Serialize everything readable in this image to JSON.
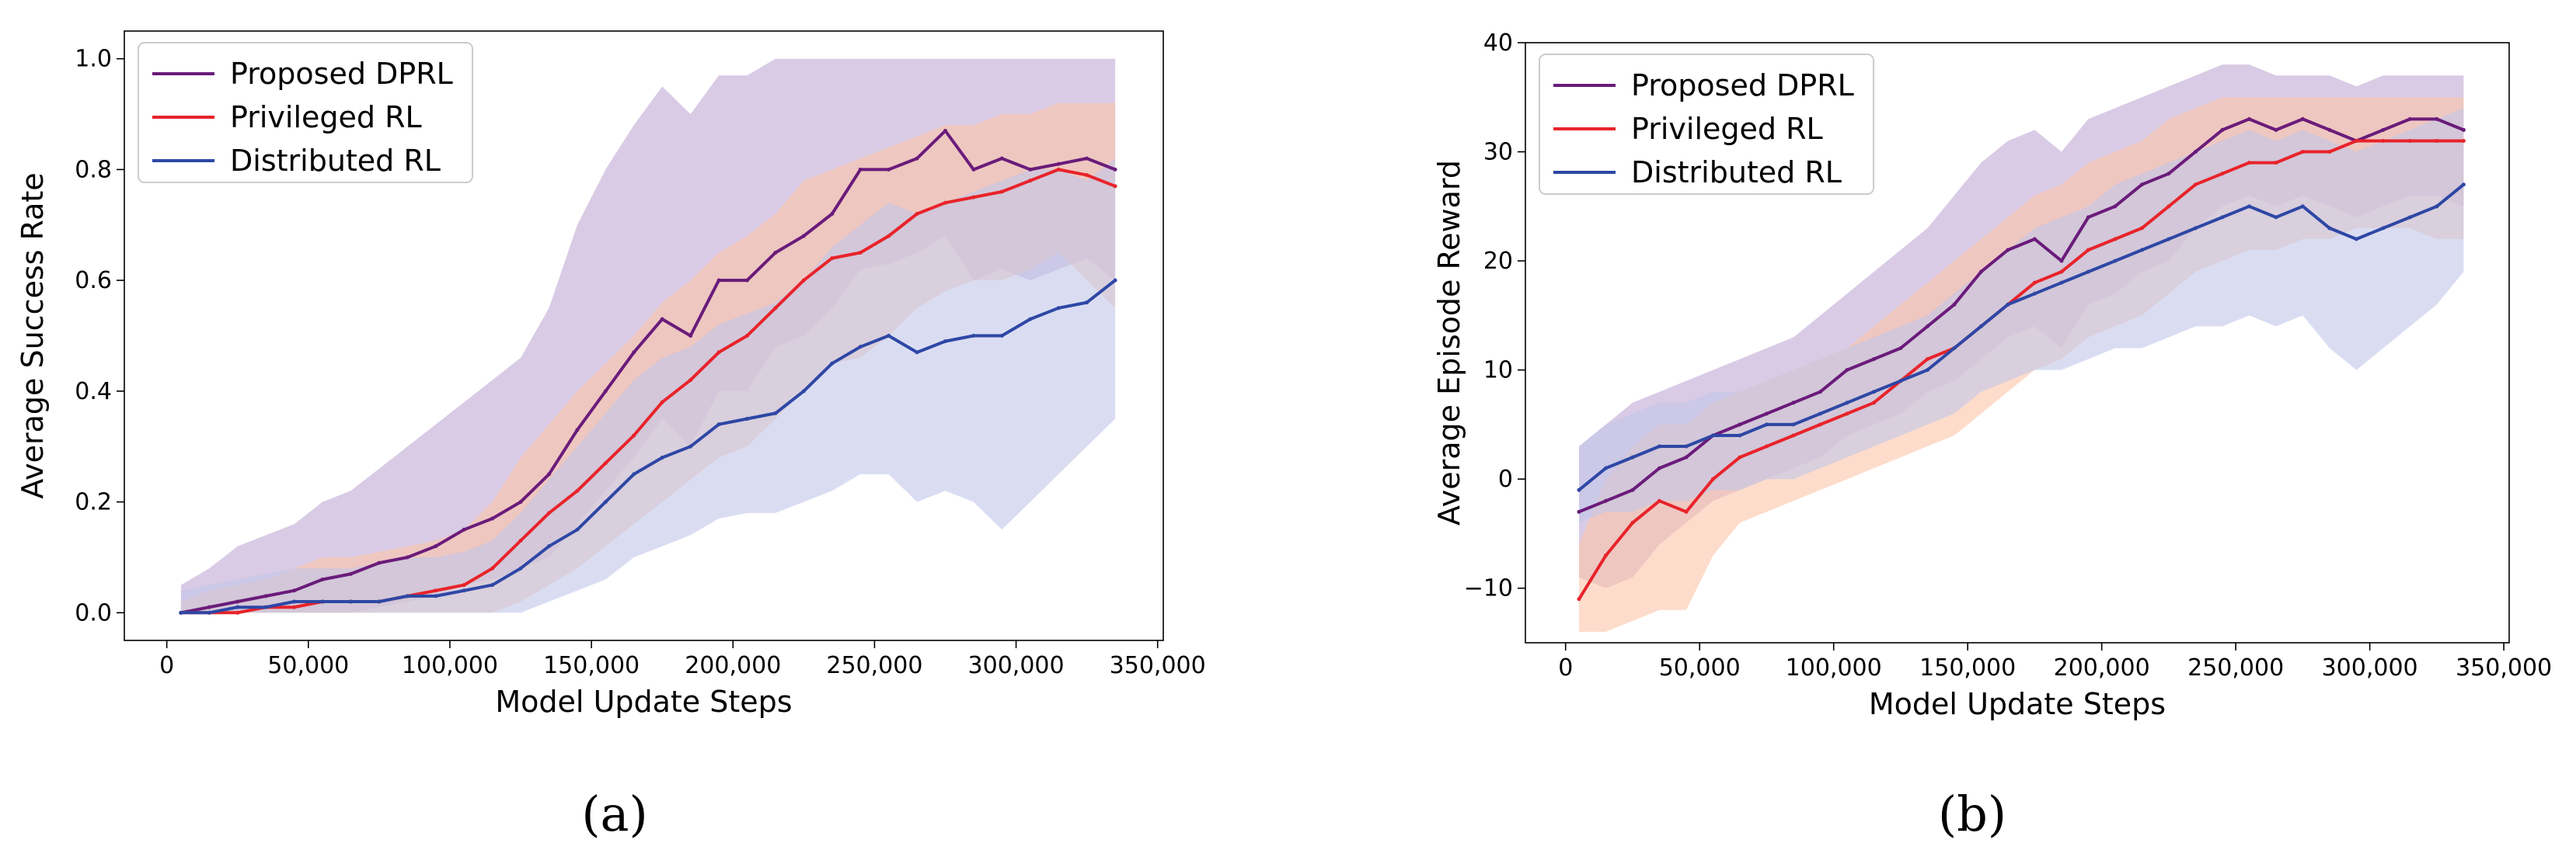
{
  "chart_data": [
    {
      "type": "line",
      "panel_caption": "(a)",
      "xlabel": "Model Update Steps",
      "ylabel": "Average Success Rate",
      "xlim": [
        -15000,
        352000
      ],
      "ylim": [
        -0.05,
        1.05
      ],
      "xticks": [
        0,
        50000,
        100000,
        150000,
        200000,
        250000,
        300000,
        350000
      ],
      "xtick_labels": [
        "0",
        "50,000",
        "100,000",
        "150,000",
        "200,000",
        "250,000",
        "300,000",
        "350,000"
      ],
      "yticks": [
        0.0,
        0.2,
        0.4,
        0.6,
        0.8,
        1.0
      ],
      "ytick_labels": [
        "0.0",
        "0.2",
        "0.4",
        "0.6",
        "0.8",
        "1.0"
      ],
      "legend_position": "top-left",
      "x": [
        5000,
        15000,
        25000,
        35000,
        45000,
        55000,
        65000,
        75000,
        85000,
        95000,
        105000,
        115000,
        125000,
        135000,
        145000,
        155000,
        165000,
        175000,
        185000,
        195000,
        205000,
        215000,
        225000,
        235000,
        245000,
        255000,
        265000,
        275000,
        285000,
        295000,
        305000,
        315000,
        325000,
        335000
      ],
      "series": [
        {
          "name": "Proposed DPRL",
          "color": "#6a1b7a",
          "band_color": "#bfa9d4",
          "values": [
            0.0,
            0.01,
            0.02,
            0.03,
            0.04,
            0.06,
            0.07,
            0.09,
            0.1,
            0.12,
            0.15,
            0.17,
            0.2,
            0.25,
            0.33,
            0.4,
            0.47,
            0.53,
            0.5,
            0.6,
            0.6,
            0.65,
            0.68,
            0.72,
            0.8,
            0.8,
            0.82,
            0.87,
            0.8,
            0.82,
            0.8,
            0.81,
            0.82,
            0.8
          ],
          "lower": [
            0.0,
            0.0,
            0.0,
            0.0,
            0.0,
            0.0,
            0.0,
            0.01,
            0.02,
            0.03,
            0.05,
            0.06,
            0.08,
            0.1,
            0.16,
            0.22,
            0.28,
            0.35,
            0.3,
            0.4,
            0.4,
            0.48,
            0.5,
            0.55,
            0.62,
            0.63,
            0.65,
            0.68,
            0.6,
            0.62,
            0.6,
            0.62,
            0.64,
            0.6
          ],
          "upper": [
            0.05,
            0.08,
            0.12,
            0.14,
            0.16,
            0.2,
            0.22,
            0.26,
            0.3,
            0.34,
            0.38,
            0.42,
            0.46,
            0.55,
            0.7,
            0.8,
            0.88,
            0.95,
            0.9,
            0.97,
            0.97,
            1.0,
            1.0,
            1.0,
            1.0,
            1.0,
            1.0,
            1.0,
            1.0,
            1.0,
            1.0,
            1.0,
            1.0,
            1.0
          ]
        },
        {
          "name": "Privileged RL",
          "color": "#e8232a",
          "band_color": "#fbc4a9",
          "values": [
            0.0,
            0.0,
            0.0,
            0.01,
            0.01,
            0.02,
            0.02,
            0.02,
            0.03,
            0.04,
            0.05,
            0.08,
            0.13,
            0.18,
            0.22,
            0.27,
            0.32,
            0.38,
            0.42,
            0.47,
            0.5,
            0.55,
            0.6,
            0.64,
            0.65,
            0.68,
            0.72,
            0.74,
            0.75,
            0.76,
            0.78,
            0.8,
            0.79,
            0.77
          ],
          "lower": [
            0.0,
            0.0,
            0.0,
            0.0,
            0.0,
            0.0,
            0.0,
            0.0,
            0.0,
            0.0,
            0.0,
            0.0,
            0.02,
            0.05,
            0.08,
            0.12,
            0.16,
            0.2,
            0.24,
            0.28,
            0.3,
            0.35,
            0.4,
            0.45,
            0.46,
            0.5,
            0.55,
            0.58,
            0.6,
            0.6,
            0.62,
            0.65,
            0.6,
            0.55
          ],
          "upper": [
            0.02,
            0.04,
            0.05,
            0.06,
            0.08,
            0.1,
            0.1,
            0.11,
            0.12,
            0.13,
            0.15,
            0.2,
            0.28,
            0.34,
            0.4,
            0.45,
            0.5,
            0.56,
            0.6,
            0.65,
            0.68,
            0.72,
            0.78,
            0.8,
            0.82,
            0.84,
            0.86,
            0.88,
            0.88,
            0.9,
            0.9,
            0.92,
            0.92,
            0.92
          ]
        },
        {
          "name": "Distributed RL",
          "color": "#2e47a5",
          "band_color": "#c2c6ea",
          "values": [
            0.0,
            0.0,
            0.01,
            0.01,
            0.02,
            0.02,
            0.02,
            0.02,
            0.03,
            0.03,
            0.04,
            0.05,
            0.08,
            0.12,
            0.15,
            0.2,
            0.25,
            0.28,
            0.3,
            0.34,
            0.35,
            0.36,
            0.4,
            0.45,
            0.48,
            0.5,
            0.47,
            0.49,
            0.5,
            0.5,
            0.53,
            0.55,
            0.56,
            0.6
          ],
          "lower": [
            0.0,
            0.0,
            0.0,
            0.0,
            0.0,
            0.0,
            0.0,
            0.0,
            0.0,
            0.0,
            0.0,
            0.0,
            0.0,
            0.02,
            0.04,
            0.06,
            0.1,
            0.12,
            0.14,
            0.17,
            0.18,
            0.18,
            0.2,
            0.22,
            0.25,
            0.25,
            0.2,
            0.22,
            0.2,
            0.15,
            0.2,
            0.25,
            0.3,
            0.35
          ],
          "upper": [
            0.04,
            0.05,
            0.06,
            0.07,
            0.08,
            0.08,
            0.08,
            0.09,
            0.1,
            0.1,
            0.11,
            0.13,
            0.18,
            0.24,
            0.3,
            0.36,
            0.42,
            0.46,
            0.48,
            0.52,
            0.54,
            0.56,
            0.6,
            0.66,
            0.7,
            0.74,
            0.72,
            0.74,
            0.76,
            0.78,
            0.8,
            0.8,
            0.78,
            0.82
          ]
        }
      ]
    },
    {
      "type": "line",
      "panel_caption": "(b)",
      "xlabel": "Model Update Steps",
      "ylabel": "Average Episode Reward",
      "xlim": [
        -15000,
        352000
      ],
      "ylim": [
        -15,
        40
      ],
      "xticks": [
        0,
        50000,
        100000,
        150000,
        200000,
        250000,
        300000,
        350000
      ],
      "xtick_labels": [
        "0",
        "50,000",
        "100,000",
        "150,000",
        "200,000",
        "250,000",
        "300,000",
        "350,000"
      ],
      "yticks": [
        -10,
        0,
        10,
        20,
        30,
        40
      ],
      "ytick_labels": [
        "−10",
        "0",
        "10",
        "20",
        "30",
        "40"
      ],
      "legend_position": "top-left",
      "x": [
        5000,
        15000,
        25000,
        35000,
        45000,
        55000,
        65000,
        75000,
        85000,
        95000,
        105000,
        115000,
        125000,
        135000,
        145000,
        155000,
        165000,
        175000,
        185000,
        195000,
        205000,
        215000,
        225000,
        235000,
        245000,
        255000,
        265000,
        275000,
        285000,
        295000,
        305000,
        315000,
        325000,
        335000
      ],
      "series": [
        {
          "name": "Proposed DPRL",
          "color": "#6a1b7a",
          "band_color": "#bfa9d4",
          "values": [
            -3,
            -2,
            -1,
            1,
            2,
            4,
            5,
            6,
            7,
            8,
            10,
            11,
            12,
            14,
            16,
            19,
            21,
            22,
            20,
            24,
            25,
            27,
            28,
            30,
            32,
            33,
            32,
            33,
            32,
            31,
            32,
            33,
            33,
            32
          ],
          "lower": [
            -9,
            -10,
            -9,
            -6,
            -4,
            -2,
            -1,
            0,
            1,
            2,
            4,
            5,
            6,
            8,
            9,
            11,
            13,
            14,
            12,
            16,
            17,
            19,
            20,
            23,
            25,
            26,
            25,
            26,
            25,
            24,
            25,
            26,
            26,
            25
          ],
          "upper": [
            3,
            5,
            7,
            8,
            9,
            10,
            11,
            12,
            13,
            15,
            17,
            19,
            21,
            23,
            26,
            29,
            31,
            32,
            30,
            33,
            34,
            35,
            36,
            37,
            38,
            38,
            37,
            37,
            37,
            36,
            37,
            37,
            37,
            37
          ]
        },
        {
          "name": "Privileged RL",
          "color": "#e8232a",
          "band_color": "#fbc4a9",
          "values": [
            -11,
            -7,
            -4,
            -2,
            -3,
            0,
            2,
            3,
            4,
            5,
            6,
            7,
            9,
            11,
            12,
            14,
            16,
            18,
            19,
            21,
            22,
            23,
            25,
            27,
            28,
            29,
            29,
            30,
            30,
            31,
            31,
            31,
            31,
            31
          ],
          "lower": [
            -14,
            -14,
            -13,
            -12,
            -12,
            -7,
            -4,
            -3,
            -2,
            -1,
            0,
            1,
            2,
            3,
            4,
            6,
            8,
            10,
            11,
            13,
            14,
            15,
            17,
            19,
            20,
            21,
            21,
            22,
            22,
            23,
            23,
            23,
            22,
            22
          ],
          "upper": [
            -6,
            0,
            3,
            5,
            5,
            7,
            8,
            9,
            10,
            11,
            12,
            14,
            16,
            18,
            20,
            22,
            24,
            26,
            27,
            29,
            30,
            31,
            33,
            34,
            35,
            35,
            35,
            35,
            35,
            35,
            35,
            35,
            35,
            35
          ]
        },
        {
          "name": "Distributed RL",
          "color": "#2e47a5",
          "band_color": "#c2c6ea",
          "values": [
            -1,
            1,
            2,
            3,
            3,
            4,
            4,
            5,
            5,
            6,
            7,
            8,
            9,
            10,
            12,
            14,
            16,
            17,
            18,
            19,
            20,
            21,
            22,
            23,
            24,
            25,
            24,
            25,
            23,
            22,
            23,
            24,
            25,
            27
          ],
          "lower": [
            -4,
            -3,
            -3,
            -2,
            -2,
            -1,
            -1,
            0,
            0,
            1,
            2,
            3,
            4,
            5,
            6,
            8,
            9,
            10,
            10,
            11,
            12,
            12,
            13,
            14,
            14,
            15,
            14,
            15,
            12,
            10,
            12,
            14,
            16,
            19
          ],
          "upper": [
            3,
            5,
            6,
            7,
            7,
            8,
            8,
            9,
            10,
            11,
            12,
            13,
            14,
            15,
            17,
            19,
            21,
            23,
            24,
            25,
            27,
            28,
            29,
            30,
            31,
            32,
            31,
            32,
            31,
            30,
            31,
            32,
            33,
            34
          ]
        }
      ]
    }
  ]
}
